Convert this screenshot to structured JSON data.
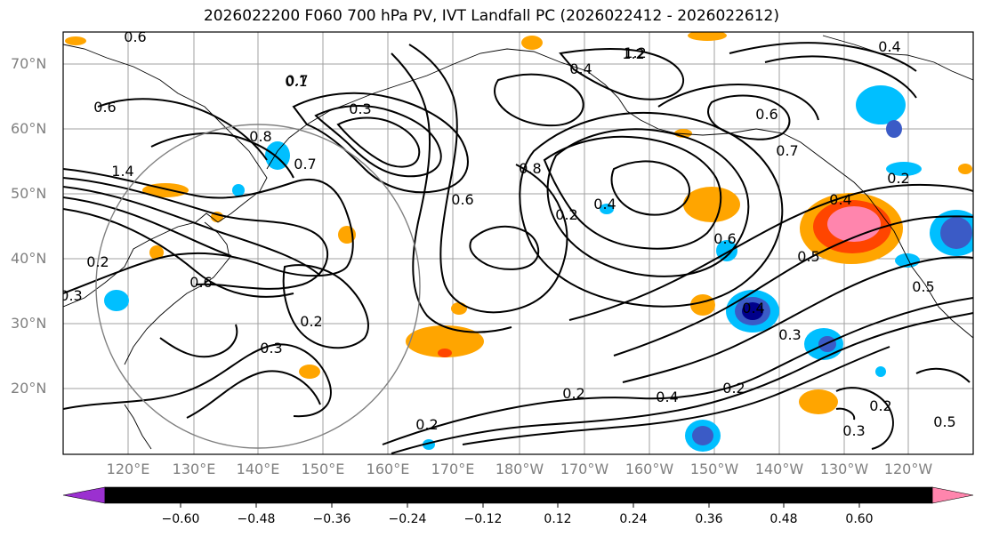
{
  "title": "2026022200 F060 700 hPa PV, IVT Landfall PC (2026022412 - 2026022612)",
  "lat_labels": [
    "70°N",
    "60°N",
    "50°N",
    "40°N",
    "30°N",
    "20°N"
  ],
  "lon_labels": [
    "120°E",
    "130°E",
    "140°E",
    "150°E",
    "160°E",
    "170°E",
    "180°W",
    "170°W",
    "160°W",
    "150°W",
    "140°W",
    "130°W",
    "120°W"
  ],
  "contour_labels": [
    "0.6",
    "0.4",
    "1.2",
    "0.7",
    "0.6",
    "0.3",
    "0.8",
    "0.7",
    "1.4",
    "0.2",
    "0.6",
    "0.2",
    "0.3",
    "0.8",
    "0.6",
    "0.2",
    "0.4",
    "0.5",
    "0.6",
    "0.7",
    "0.3",
    "0.4",
    "0.2",
    "0.2",
    "0.2",
    "0.3",
    "0.2",
    "0.4",
    "0.3",
    "0.4",
    "0.2",
    "0.5",
    "0.5",
    "0.4",
    "0.6",
    "1.2",
    "0.1"
  ],
  "colorbar": {
    "colors": [
      "#9b30d0",
      "#00008b",
      "#3b5bc6",
      "#00bfff",
      "#b0e0fa",
      "#ffffff",
      "#ffec8b",
      "#ffa500",
      "#ff4500",
      "#b22222",
      "#ff85ad",
      "#ff85ad"
    ],
    "tick_labels": [
      "−0.60",
      "−0.48",
      "−0.36",
      "−0.24",
      "−0.12",
      "0.12",
      "0.24",
      "0.36",
      "0.48",
      "0.60"
    ]
  },
  "colors": {
    "grid": "#a0a0a0",
    "coast": "#000000",
    "circle": "#808080"
  }
}
